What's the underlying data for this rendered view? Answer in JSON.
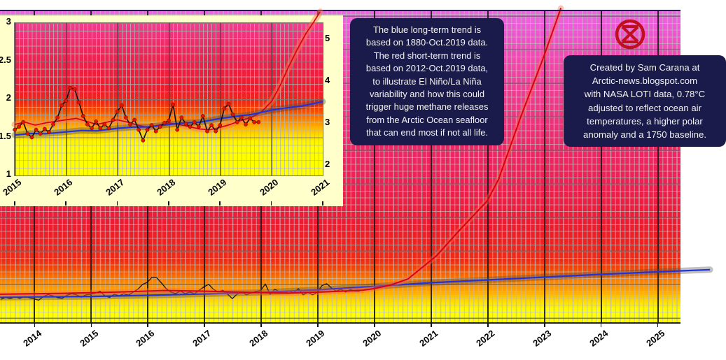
{
  "page": {
    "background": "#ffffff",
    "description": "Temperature anomaly chart with exponential short-term trend, inset detail chart, annotations and Extinction Rebellion symbol"
  },
  "colors": {
    "long_term_trend_blue": "#2230dd",
    "short_term_trend_red": "#d6001c",
    "monthly_line_black": "#151515",
    "monthly_dot_red": "#e11500",
    "blue_band_gray": "#444444",
    "red_band": "#ff6a44",
    "note_box_bg": "#1b1b4b",
    "note_text": "#f2f2f2",
    "logo_red": "#c00f1f",
    "panel_cream": "#ffffcc",
    "border_navy": "#1c1c4a",
    "gradient_top_to_bottom": [
      "#ec67e4",
      "#f23688",
      "#ee1c2c",
      "#f24b04",
      "#fb7a00",
      "#ffa600",
      "#ffff00"
    ]
  },
  "logo": {
    "name": "extinction-rebellion-symbol"
  },
  "annotations": {
    "box1": {
      "lines": [
        "The blue long-term trend is",
        "based on 1880-Oct.2019 data.",
        "The red short-term trend is",
        "based on 2012-Oct.2019 data,",
        "to illustrate El Niño/La Niña",
        "variability and how this could",
        "trigger huge methane releases",
        "from the Arctic Ocean seafloor",
        "that can end most if not all life."
      ]
    },
    "box2": {
      "lines": [
        "Created by Sam Carana at",
        "Arctic-news.blogspot.com",
        "with NASA LOTI data, 0.78°C",
        "adjusted to reflect ocean air",
        "temperatures, a higher polar",
        "anomaly and a 1750 baseline."
      ]
    }
  },
  "chart_data": [
    {
      "id": "main",
      "type": "line",
      "title": "",
      "xlabel": "",
      "ylabel": "",
      "xlim": [
        2013.4,
        2025.41
      ],
      "ylim": [
        0.7,
        10.7
      ],
      "grid": true,
      "x_ticks": {
        "x": [
          2014,
          2015,
          2016,
          2017,
          2018,
          2019,
          2020,
          2021,
          2022,
          2023,
          2024,
          2025
        ],
        "labels": [
          "2014",
          "2015",
          "2016",
          "2017",
          "2018",
          "2019",
          "2020",
          "2021",
          "2022",
          "2023",
          "2024",
          "2025"
        ]
      },
      "series": [
        {
          "name": "monthly-anomaly",
          "color": "#151515",
          "width": 1.3,
          "x0": 2013.4167,
          "dx": 0.08333,
          "values": [
            1.44,
            1.5,
            1.46,
            1.52,
            1.47,
            1.53,
            1.49,
            1.45,
            1.41,
            1.53,
            1.59,
            1.55,
            1.49,
            1.47,
            1.57,
            1.62,
            1.58,
            1.51,
            1.58,
            1.6,
            1.64,
            1.7,
            1.55,
            1.5,
            1.6,
            1.55,
            1.61,
            1.57,
            1.67,
            1.76,
            1.92,
            1.98,
            2.15,
            2.13,
            1.96,
            1.78,
            1.67,
            1.62,
            1.71,
            1.62,
            1.67,
            1.62,
            1.73,
            1.84,
            1.92,
            1.76,
            1.67,
            1.73,
            1.6,
            1.46,
            1.6,
            1.66,
            1.58,
            1.64,
            1.69,
            1.72,
            1.93,
            1.6,
            1.76,
            1.68,
            1.64,
            1.7,
            1.64,
            1.78,
            1.58,
            1.66,
            1.58,
            1.66,
            1.88,
            1.94,
            1.8,
            1.7,
            1.76,
            1.67,
            1.75,
            1.7,
            1.7
          ]
        },
        {
          "name": "blue-long-term-trend",
          "color": "#2230dd",
          "width": 2.2,
          "band": {
            "color": "#444444",
            "width": 9,
            "opacity": 0.33
          },
          "points": [
            [
              2013.4,
              1.505
            ],
            [
              2014,
              1.515
            ],
            [
              2015,
              1.53
            ],
            [
              2016,
              1.565
            ],
            [
              2017,
              1.61
            ],
            [
              2018,
              1.66
            ],
            [
              2019,
              1.74
            ],
            [
              2020,
              1.85
            ],
            [
              2021,
              1.97
            ],
            [
              2022,
              2.06
            ],
            [
              2023,
              2.15
            ],
            [
              2024,
              2.24
            ],
            [
              2025,
              2.32
            ],
            [
              2025.93,
              2.39
            ]
          ]
        },
        {
          "name": "red-short-term-trend",
          "color": "#d6001c",
          "width": 2.0,
          "band": {
            "color": "#ff6a44",
            "width": 8,
            "opacity": 0.4
          },
          "points": [
            [
              2013.4,
              1.6
            ],
            [
              2014.5,
              1.63
            ],
            [
              2015.5,
              1.67
            ],
            [
              2016.3,
              1.72
            ],
            [
              2017.0,
              1.7
            ],
            [
              2017.8,
              1.66
            ],
            [
              2018.5,
              1.64
            ],
            [
              2019.2,
              1.68
            ],
            [
              2019.8,
              1.73
            ],
            [
              2020.0,
              1.78
            ],
            [
              2020.3,
              1.9
            ],
            [
              2020.6,
              2.09
            ],
            [
              2021.1,
              2.83
            ],
            [
              2021.5,
              3.64
            ],
            [
              2022.0,
              4.6
            ],
            [
              2022.2,
              5.3
            ],
            [
              2022.6,
              7.35
            ],
            [
              2023.0,
              9.26
            ],
            [
              2023.3,
              10.8
            ]
          ]
        }
      ]
    },
    {
      "id": "inset",
      "type": "line",
      "title": "",
      "xlabel": "",
      "ylabel": "",
      "xlim": [
        2015,
        2021
      ],
      "ylim": [
        1,
        3
      ],
      "grid": true,
      "x_ticks": {
        "x": [
          2015,
          2016,
          2017,
          2018,
          2019,
          2020,
          2021
        ],
        "labels": [
          "2015",
          "2016",
          "2017",
          "2018",
          "2019",
          "2020",
          "2021"
        ]
      },
      "y_ticks_left": {
        "values": [
          3,
          2.5,
          2,
          1.5,
          1
        ],
        "labels": [
          "3",
          "2.5",
          "2",
          "1.5",
          "1"
        ]
      },
      "y_ticks_right": {
        "values": [
          5,
          4,
          3,
          2
        ],
        "labels": [
          "5",
          "4",
          "3",
          "2"
        ],
        "ylim": [
          1.767,
          5.4
        ]
      },
      "series": [
        {
          "name": "red-short-term-trend",
          "color": "#d6001c",
          "width": 1.7,
          "band": {
            "color": "#ff7744",
            "width": 9,
            "opacity": 0.45
          },
          "points": [
            [
              2015,
              1.67
            ],
            [
              2015.2,
              1.7
            ],
            [
              2015.4,
              1.66
            ],
            [
              2015.6,
              1.69
            ],
            [
              2015.8,
              1.71
            ],
            [
              2016,
              1.73
            ],
            [
              2016.2,
              1.75
            ],
            [
              2016.4,
              1.71
            ],
            [
              2016.6,
              1.67
            ],
            [
              2016.8,
              1.7
            ],
            [
              2017,
              1.73
            ],
            [
              2017.2,
              1.7
            ],
            [
              2017.4,
              1.66
            ],
            [
              2017.6,
              1.63
            ],
            [
              2017.8,
              1.66
            ],
            [
              2018,
              1.69
            ],
            [
              2018.2,
              1.67
            ],
            [
              2018.4,
              1.64
            ],
            [
              2018.6,
              1.61
            ],
            [
              2018.8,
              1.6
            ],
            [
              2019,
              1.63
            ],
            [
              2019.2,
              1.67
            ],
            [
              2019.4,
              1.72
            ],
            [
              2019.6,
              1.76
            ],
            [
              2019.8,
              1.83
            ],
            [
              2020,
              1.97
            ],
            [
              2020.17,
              2.18
            ],
            [
              2020.33,
              2.42
            ],
            [
              2020.5,
              2.65
            ],
            [
              2020.67,
              2.86
            ],
            [
              2020.83,
              3.02
            ],
            [
              2020.95,
              3.15
            ]
          ]
        },
        {
          "name": "blue-long-term-trend",
          "color": "#2230dd",
          "width": 2.2,
          "band": {
            "color": "#444444",
            "width": 9,
            "opacity": 0.36
          },
          "points": [
            [
              2015,
              1.53
            ],
            [
              2015.3,
              1.55
            ],
            [
              2015.6,
              1.548
            ],
            [
              2016,
              1.572
            ],
            [
              2016.3,
              1.59
            ],
            [
              2016.6,
              1.585
            ],
            [
              2017,
              1.618
            ],
            [
              2017.3,
              1.635
            ],
            [
              2017.6,
              1.638
            ],
            [
              2018,
              1.668
            ],
            [
              2018.3,
              1.69
            ],
            [
              2018.6,
              1.698
            ],
            [
              2019,
              1.748
            ],
            [
              2019.3,
              1.775
            ],
            [
              2019.6,
              1.798
            ],
            [
              2020,
              1.858
            ],
            [
              2020.3,
              1.888
            ],
            [
              2020.6,
              1.912
            ],
            [
              2021,
              1.97
            ]
          ]
        },
        {
          "name": "monthly-anomaly",
          "color": "#111111",
          "width": 1.6,
          "dots": {
            "r": 2.6,
            "color": "#e11500"
          },
          "x0": 2015.0,
          "dx": 0.08333,
          "values": [
            1.6,
            1.64,
            1.7,
            1.55,
            1.5,
            1.6,
            1.55,
            1.61,
            1.57,
            1.67,
            1.76,
            1.92,
            1.98,
            2.15,
            2.13,
            1.96,
            1.78,
            1.67,
            1.62,
            1.71,
            1.62,
            1.67,
            1.62,
            1.73,
            1.84,
            1.92,
            1.76,
            1.67,
            1.73,
            1.6,
            1.46,
            1.6,
            1.66,
            1.58,
            1.64,
            1.69,
            1.72,
            1.93,
            1.6,
            1.76,
            1.68,
            1.64,
            1.7,
            1.64,
            1.78,
            1.58,
            1.66,
            1.58,
            1.66,
            1.88,
            1.94,
            1.8,
            1.7,
            1.76,
            1.67,
            1.75,
            1.7,
            1.7
          ]
        }
      ]
    }
  ]
}
